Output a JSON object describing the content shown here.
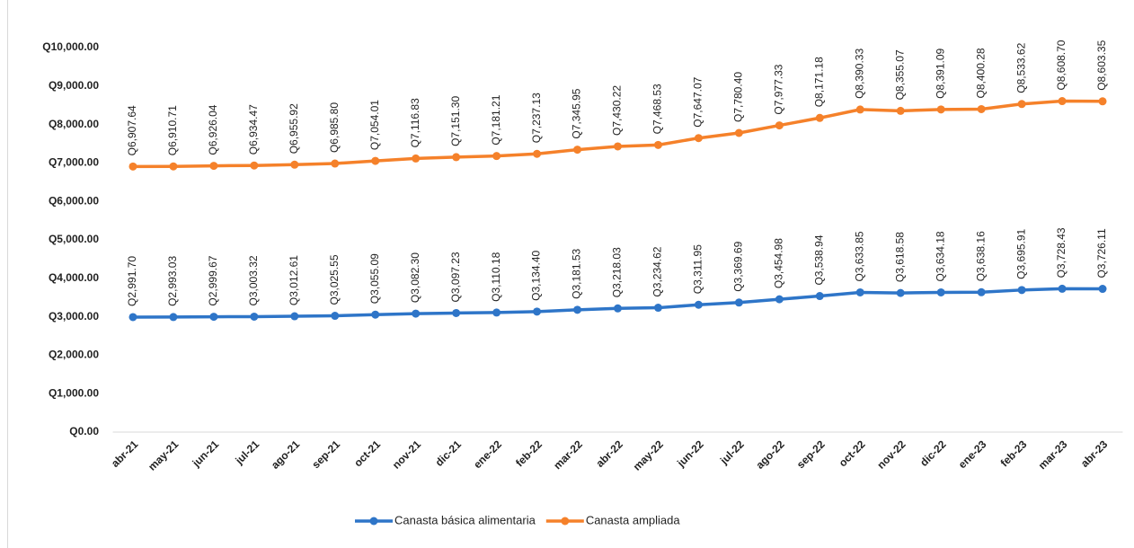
{
  "chart_data": {
    "type": "line",
    "categories": [
      "abr-21",
      "may-21",
      "jun-21",
      "jul-21",
      "ago-21",
      "sep-21",
      "oct-21",
      "nov-21",
      "dic-21",
      "ene-22",
      "feb-22",
      "mar-22",
      "abr-22",
      "may-22",
      "jun-22",
      "jul-22",
      "ago-22",
      "sep-22",
      "oct-22",
      "nov-22",
      "dic-22",
      "ene-23",
      "feb-23",
      "mar-23",
      "abr-23"
    ],
    "series": [
      {
        "name": "Canasta básica alimentaria",
        "color": "#2e75c8",
        "values": [
          2991.7,
          2993.03,
          2999.67,
          3003.32,
          3012.61,
          3025.55,
          3055.09,
          3082.3,
          3097.23,
          3110.18,
          3134.4,
          3181.53,
          3218.03,
          3234.62,
          3311.95,
          3369.69,
          3454.98,
          3538.94,
          3633.85,
          3618.58,
          3634.18,
          3638.16,
          3695.91,
          3728.43,
          3726.11
        ],
        "value_labels": [
          "Q2,991.70",
          "Q2,993.03",
          "Q2,999.67",
          "Q3,003.32",
          "Q3,012.61",
          "Q3,025.55",
          "Q3,055.09",
          "Q3,082.30",
          "Q3,097.23",
          "Q3,110.18",
          "Q3,134.40",
          "Q3,181.53",
          "Q3,218.03",
          "Q3,234.62",
          "Q3,311.95",
          "Q3,369.69",
          "Q3,454.98",
          "Q3,538.94",
          "Q3,633.85",
          "Q3,618.58",
          "Q3,634.18",
          "Q3,638.16",
          "Q3,695.91",
          "Q3,728.43",
          "Q3,726.11"
        ]
      },
      {
        "name": "Canasta ampliada",
        "color": "#f5812a",
        "values": [
          6907.64,
          6910.71,
          6926.04,
          6934.47,
          6955.92,
          6985.8,
          7054.01,
          7116.83,
          7151.3,
          7181.21,
          7237.13,
          7345.95,
          7430.22,
          7468.53,
          7647.07,
          7780.4,
          7977.33,
          8171.18,
          8390.33,
          8355.07,
          8391.09,
          8400.28,
          8533.62,
          8608.7,
          8603.35
        ],
        "value_labels": [
          "Q6,907.64",
          "Q6,910.71",
          "Q6,926.04",
          "Q6,934.47",
          "Q6,955.92",
          "Q6,985.80",
          "Q7,054.01",
          "Q7,116.83",
          "Q7,151.30",
          "Q7,181.21",
          "Q7,237.13",
          "Q7,345.95",
          "Q7,430.22",
          "Q7,468.53",
          "Q7,647.07",
          "Q7,780.40",
          "Q7,977.33",
          "Q8,171.18",
          "Q8,390.33",
          "Q8,355.07",
          "Q8,391.09",
          "Q8,400.28",
          "Q8,533.62",
          "Q8,608.70",
          "Q8,603.35"
        ]
      }
    ],
    "ylim": [
      0,
      10000
    ],
    "yticks": [
      {
        "value": 0,
        "label": "Q0.00"
      },
      {
        "value": 1000,
        "label": "Q1,000.00"
      },
      {
        "value": 2000,
        "label": "Q2,000.00"
      },
      {
        "value": 3000,
        "label": "Q3,000.00"
      },
      {
        "value": 4000,
        "label": "Q4,000.00"
      },
      {
        "value": 5000,
        "label": "Q5,000.00"
      },
      {
        "value": 6000,
        "label": "Q6,000.00"
      },
      {
        "value": 7000,
        "label": "Q7,000.00"
      },
      {
        "value": 8000,
        "label": "Q8,000.00"
      },
      {
        "value": 9000,
        "label": "Q9,000.00"
      },
      {
        "value": 10000,
        "label": "Q10,000.00"
      }
    ],
    "legend": "bottom"
  }
}
